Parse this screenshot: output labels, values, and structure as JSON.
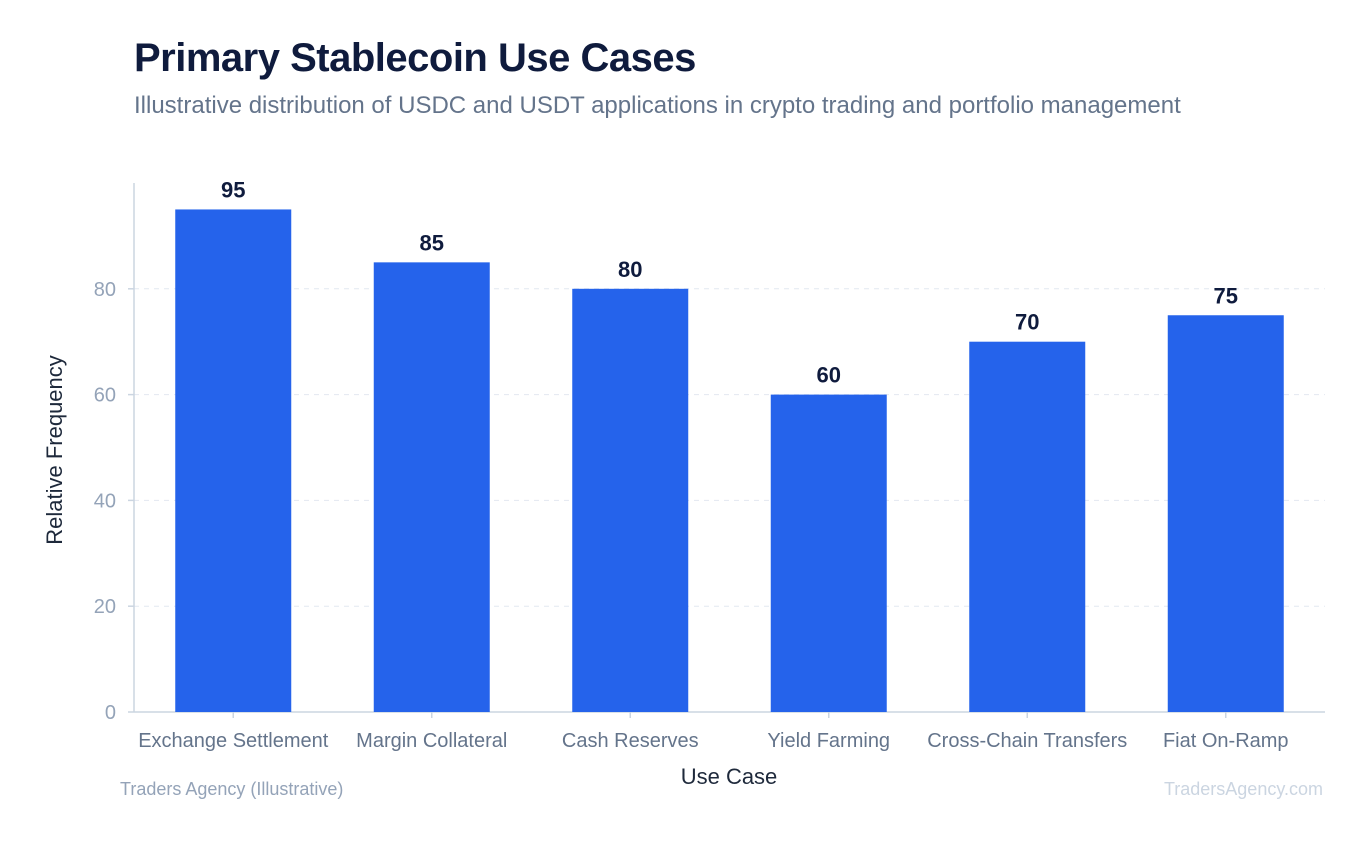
{
  "chart_data": {
    "type": "bar",
    "title": "Primary Stablecoin Use Cases",
    "subtitle": "Illustrative distribution of USDC and USDT applications in crypto trading and portfolio management",
    "xlabel": "Use Case",
    "ylabel": "Relative Frequency",
    "categories": [
      "Exchange Settlement",
      "Margin Collateral",
      "Cash Reserves",
      "Yield Farming",
      "Cross-Chain Transfers",
      "Fiat On-Ramp"
    ],
    "values": [
      95,
      85,
      80,
      60,
      70,
      75
    ],
    "yticks": [
      0,
      20,
      40,
      60,
      80
    ],
    "ylim": [
      0,
      100
    ],
    "grid": true,
    "legend": "none",
    "bar_color": "#2563eb"
  },
  "footer": {
    "source": "Traders Agency (Illustrative)",
    "watermark": "TradersAgency.com"
  }
}
